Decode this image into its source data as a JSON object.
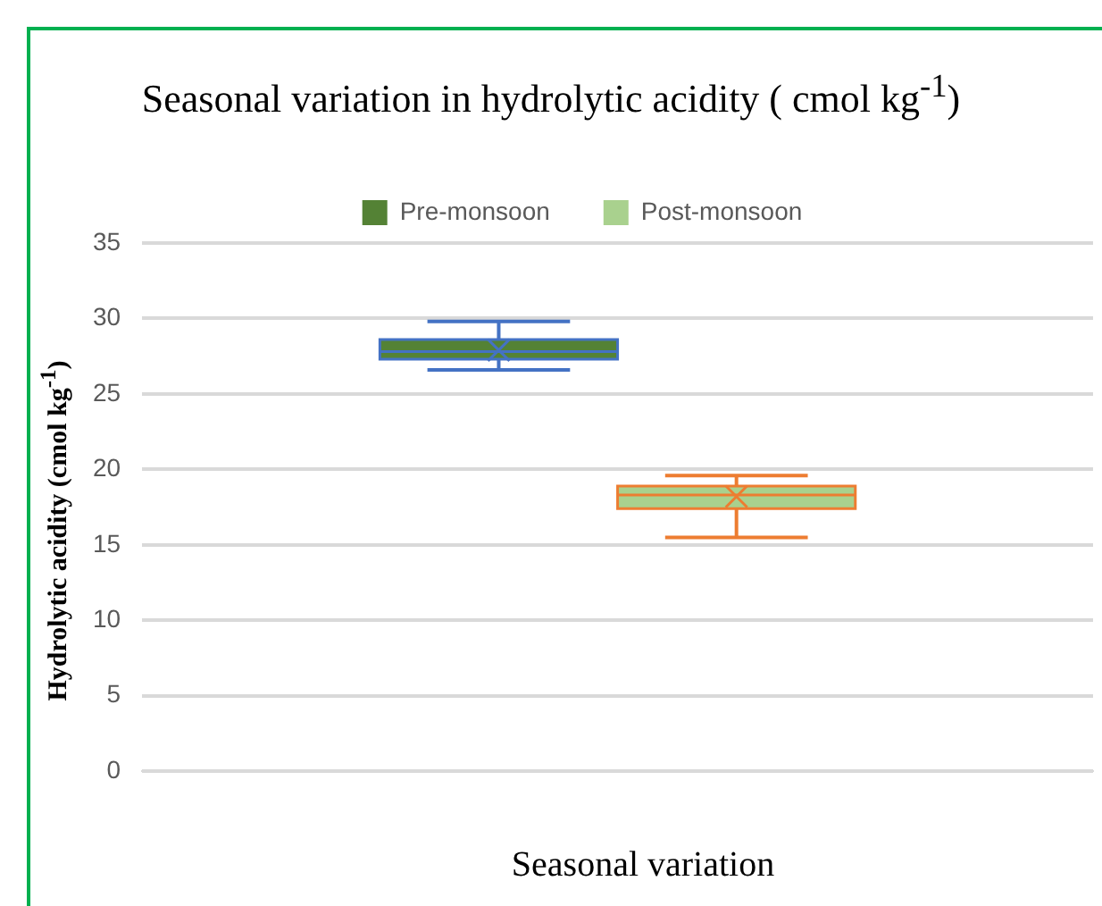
{
  "chart_data": {
    "type": "box",
    "title": "Seasonal variation in hydrolytic acidity ( cmol kg$^{-1}$)",
    "xlabel": "Seasonal variation",
    "ylabel": "Hydrolytic acidity (cmol kg$^{-1}$)",
    "categories": [
      null
    ],
    "series": [
      {
        "name": "Pre-monsoon",
        "color": "#548235",
        "boxes": [
          {
            "low": 26.6,
            "q1": 27.3,
            "median": 27.8,
            "q3": 28.6,
            "high": 29.8,
            "mean": 27.9
          }
        ]
      },
      {
        "name": "Post-monsoon",
        "color": "#a9d18e",
        "boxes": [
          {
            "low": 15.5,
            "q1": 17.4,
            "median": 18.3,
            "q3": 18.9,
            "high": 19.6,
            "mean": 18.2
          }
        ]
      }
    ],
    "ylim": [
      0,
      35
    ],
    "yticks": [
      0,
      5,
      10,
      15,
      20,
      25,
      30,
      35
    ],
    "grid": "y",
    "legend": "top",
    "tick_labels": "y"
  }
}
